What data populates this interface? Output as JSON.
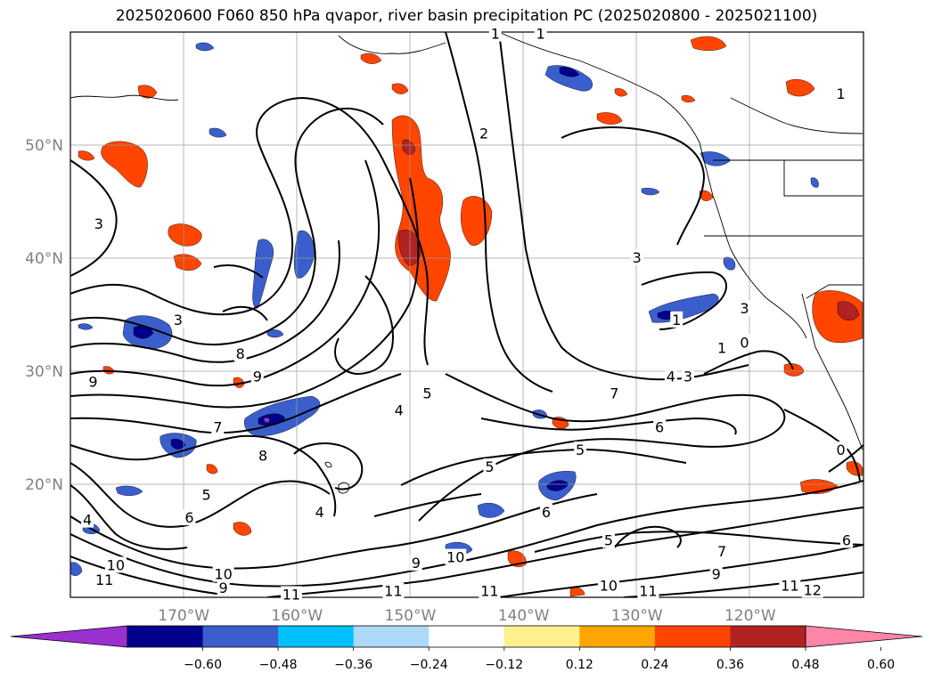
{
  "title": "2025020600 F060 850 hPa qvapor, river basin precipitation PC (2025020800 - 2025021100)",
  "lat_labels": [
    {
      "lat": 50,
      "label": "50°N"
    },
    {
      "lat": 40,
      "label": "40°N"
    },
    {
      "lat": 30,
      "label": "30°N"
    },
    {
      "lat": 20,
      "label": "20°N"
    }
  ],
  "lon_labels": [
    {
      "lon": -170,
      "label": "170°W"
    },
    {
      "lon": -160,
      "label": "160°W"
    },
    {
      "lon": -150,
      "label": "150°W"
    },
    {
      "lon": -140,
      "label": "140°W"
    },
    {
      "lon": -130,
      "label": "130°W"
    },
    {
      "lon": -120,
      "label": "120°W"
    }
  ],
  "extent": {
    "lon_min": -180,
    "lon_max": -110,
    "lat_min": 10,
    "lat_max": 60
  },
  "colorbar": {
    "colors": [
      "#9b30d0",
      "#00008b",
      "#3a5fcd",
      "#00bfff",
      "#add8f7",
      "#ffffff",
      "#fff08f",
      "#ffa500",
      "#ff4500",
      "#b22222",
      "#ff85a8"
    ],
    "ticks": [
      "−0.60",
      "−0.48",
      "−0.36",
      "−0.24",
      "−0.12",
      "0.12",
      "0.24",
      "0.36",
      "0.48",
      "0.60"
    ]
  },
  "contour_labels": [
    {
      "text": "1",
      "lon": -142.5,
      "lat": 59.8
    },
    {
      "text": "1",
      "lon": -138.5,
      "lat": 59.8
    },
    {
      "text": "1",
      "lon": -112.0,
      "lat": 54.5
    },
    {
      "text": "2",
      "lon": -143.5,
      "lat": 51.0
    },
    {
      "text": "3",
      "lon": -177.5,
      "lat": 43.0
    },
    {
      "text": "3",
      "lon": -130.0,
      "lat": 40.0
    },
    {
      "text": "3",
      "lon": -170.5,
      "lat": 34.5
    },
    {
      "text": "1",
      "lon": -126.5,
      "lat": 34.5
    },
    {
      "text": "8",
      "lon": -165.0,
      "lat": 31.5
    },
    {
      "text": "9",
      "lon": -178.0,
      "lat": 29.0
    },
    {
      "text": "9",
      "lon": -163.5,
      "lat": 29.5
    },
    {
      "text": "4",
      "lon": -127.0,
      "lat": 29.5
    },
    {
      "text": "3",
      "lon": -125.5,
      "lat": 29.5
    },
    {
      "text": "5",
      "lon": -148.5,
      "lat": 28.0
    },
    {
      "text": "4",
      "lon": -151.0,
      "lat": 26.5
    },
    {
      "text": "7",
      "lon": -132.0,
      "lat": 28.0
    },
    {
      "text": "6",
      "lon": -128.0,
      "lat": 25.0
    },
    {
      "text": "7",
      "lon": -167.0,
      "lat": 25.0
    },
    {
      "text": "5",
      "lon": -135.0,
      "lat": 23.0
    },
    {
      "text": "8",
      "lon": -163.0,
      "lat": 22.5
    },
    {
      "text": "5",
      "lon": -143.0,
      "lat": 21.5
    },
    {
      "text": "5",
      "lon": -168.0,
      "lat": 19.0
    },
    {
      "text": "4",
      "lon": -158.0,
      "lat": 17.5
    },
    {
      "text": "6",
      "lon": -169.5,
      "lat": 17.0
    },
    {
      "text": "6",
      "lon": -138.0,
      "lat": 17.5
    },
    {
      "text": "4",
      "lon": -178.5,
      "lat": 16.8
    },
    {
      "text": "5",
      "lon": -132.5,
      "lat": 15.0
    },
    {
      "text": "7",
      "lon": -122.5,
      "lat": 14.0
    },
    {
      "text": "6",
      "lon": -111.5,
      "lat": 15.0
    },
    {
      "text": "10",
      "lon": -176.0,
      "lat": 12.8
    },
    {
      "text": "10",
      "lon": -146.0,
      "lat": 13.5
    },
    {
      "text": "9",
      "lon": -149.5,
      "lat": 13.0
    },
    {
      "text": "9",
      "lon": -123.0,
      "lat": 12.0
    },
    {
      "text": "10",
      "lon": -166.5,
      "lat": 12.0
    },
    {
      "text": "9",
      "lon": -166.5,
      "lat": 10.8
    },
    {
      "text": "10",
      "lon": -132.5,
      "lat": 11.0
    },
    {
      "text": "11",
      "lon": -177.0,
      "lat": 11.5
    },
    {
      "text": "11",
      "lon": -160.5,
      "lat": 10.2
    },
    {
      "text": "11",
      "lon": -151.5,
      "lat": 10.5
    },
    {
      "text": "11",
      "lon": -143.0,
      "lat": 10.5
    },
    {
      "text": "11",
      "lon": -129.0,
      "lat": 10.5
    },
    {
      "text": "11",
      "lon": -116.5,
      "lat": 11.0
    },
    {
      "text": "12",
      "lon": -114.5,
      "lat": 10.6
    },
    {
      "text": "0",
      "lon": -120.5,
      "lat": 32.5
    },
    {
      "text": "0",
      "lon": -112.0,
      "lat": 23.0
    },
    {
      "text": "1",
      "lon": -122.5,
      "lat": 32.0
    },
    {
      "text": "3",
      "lon": -120.5,
      "lat": 35.5
    }
  ]
}
